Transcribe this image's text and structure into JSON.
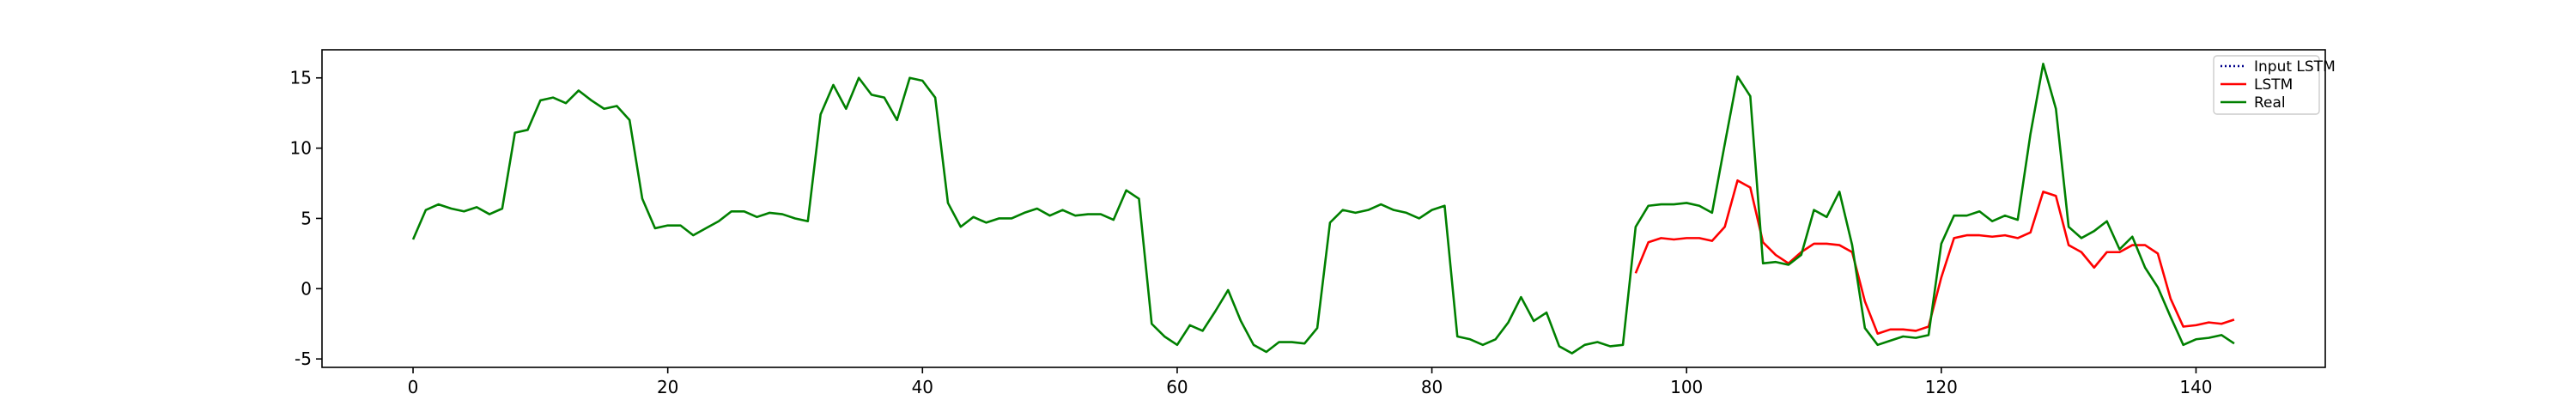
{
  "chart_data": {
    "type": "line",
    "title": "",
    "xlabel": "",
    "ylabel": "",
    "xlim": [
      -7.15,
      150.15
    ],
    "ylim": [
      -5.6,
      17.0
    ],
    "x_ticks": [
      0,
      20,
      40,
      60,
      80,
      100,
      120,
      140
    ],
    "y_ticks": [
      -5,
      0,
      5,
      10,
      15
    ],
    "grid": false,
    "legend": {
      "placement": "upper right"
    },
    "series": [
      {
        "name": "Input LSTM",
        "color": "#00008b",
        "style": "dotted",
        "x_start": 0,
        "values": []
      },
      {
        "name": "LSTM",
        "color": "#ff0000",
        "style": "solid",
        "x_start": 96,
        "values": [
          1.1,
          3.3,
          3.6,
          3.5,
          3.6,
          3.6,
          3.4,
          4.4,
          7.7,
          7.2,
          3.3,
          2.4,
          1.8,
          2.6,
          3.2,
          3.2,
          3.1,
          2.6,
          -0.9,
          -3.2,
          -2.9,
          -2.9,
          -3.0,
          -2.7,
          0.8,
          3.6,
          3.8,
          3.8,
          3.7,
          3.8,
          3.6,
          4.0,
          6.9,
          6.6,
          3.1,
          2.6,
          1.5,
          2.6,
          2.6,
          3.1,
          3.1,
          2.5,
          -0.7,
          -2.7,
          -2.6,
          -2.4,
          -2.5,
          -2.2
        ]
      },
      {
        "name": "Real",
        "color": "#008000",
        "style": "solid",
        "x_start": 0,
        "values": [
          3.5,
          5.6,
          6.0,
          5.7,
          5.5,
          5.8,
          5.3,
          5.7,
          11.1,
          11.3,
          13.4,
          13.6,
          13.2,
          14.1,
          13.4,
          12.8,
          13.0,
          12.0,
          6.4,
          4.3,
          4.5,
          4.5,
          3.8,
          4.3,
          4.8,
          5.5,
          5.5,
          5.1,
          5.4,
          5.3,
          5.0,
          4.8,
          12.4,
          14.5,
          12.8,
          15.0,
          13.8,
          13.6,
          12.0,
          15.0,
          14.8,
          13.6,
          6.1,
          4.4,
          5.1,
          4.7,
          5.0,
          5.0,
          5.4,
          5.7,
          5.2,
          5.6,
          5.2,
          5.3,
          5.3,
          4.9,
          7.0,
          6.4,
          -2.5,
          -3.4,
          -4.0,
          -2.6,
          -3.0,
          -1.6,
          -0.1,
          -2.3,
          -4.0,
          -4.5,
          -3.8,
          -3.8,
          -3.9,
          -2.8,
          4.7,
          5.6,
          5.4,
          5.6,
          6.0,
          5.6,
          5.4,
          5.0,
          5.6,
          5.9,
          -3.4,
          -3.6,
          -4.0,
          -3.6,
          -2.4,
          -0.6,
          -2.3,
          -1.7,
          -4.1,
          -4.6,
          -4.0,
          -3.8,
          -4.1,
          -4.0,
          4.4,
          5.9,
          6.0,
          6.0,
          6.1,
          5.9,
          5.4,
          10.3,
          15.1,
          13.7,
          1.8,
          1.9,
          1.7,
          2.4,
          5.6,
          5.1,
          6.9,
          3.1,
          -2.8,
          -4.0,
          -3.7,
          -3.4,
          -3.5,
          -3.3,
          3.2,
          5.2,
          5.2,
          5.5,
          4.8,
          5.2,
          4.9,
          11.0,
          16.0,
          12.8,
          4.4,
          3.6,
          4.1,
          4.8,
          2.8,
          3.7,
          1.5,
          0.1,
          -2.0,
          -4.0,
          -3.6,
          -3.5,
          -3.3,
          -3.9
        ]
      }
    ]
  }
}
